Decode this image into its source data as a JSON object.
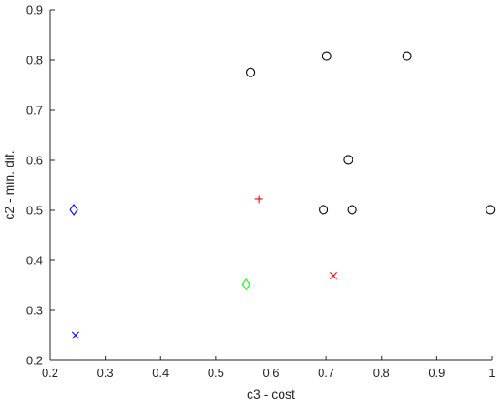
{
  "chart_data": {
    "type": "scatter",
    "title": "",
    "xlabel": "c3 - cost",
    "ylabel": "c2 - min. dif.",
    "xlim": [
      0.2,
      1.0
    ],
    "ylim": [
      0.2,
      0.9
    ],
    "x_ticks": [
      "0.2",
      "0.3",
      "0.4",
      "0.5",
      "0.6",
      "0.7",
      "0.8",
      "0.9",
      "1"
    ],
    "y_ticks": [
      "0.2",
      "0.3",
      "0.4",
      "0.5",
      "0.6",
      "0.7",
      "0.8",
      "0.9"
    ],
    "grid": false,
    "legend": "none",
    "series": [
      {
        "marker": "circle",
        "color": "#000000",
        "points": [
          {
            "x": 0.563,
            "y": 0.775
          },
          {
            "x": 0.701,
            "y": 0.808
          },
          {
            "x": 0.846,
            "y": 0.808
          },
          {
            "x": 0.74,
            "y": 0.601
          },
          {
            "x": 0.695,
            "y": 0.501
          },
          {
            "x": 0.747,
            "y": 0.501
          },
          {
            "x": 0.997,
            "y": 0.501
          }
        ]
      },
      {
        "marker": "plus",
        "color": "#ff0000",
        "points": [
          {
            "x": 0.578,
            "y": 0.522
          }
        ]
      },
      {
        "marker": "x",
        "color": "#ff0000",
        "points": [
          {
            "x": 0.713,
            "y": 0.369
          }
        ]
      },
      {
        "marker": "diamond",
        "color": "#0000ff",
        "points": [
          {
            "x": 0.243,
            "y": 0.501
          }
        ]
      },
      {
        "marker": "diamond",
        "color": "#00ff00",
        "points": [
          {
            "x": 0.555,
            "y": 0.352
          }
        ]
      },
      {
        "marker": "x",
        "color": "#0000ff",
        "points": [
          {
            "x": 0.246,
            "y": 0.25
          }
        ]
      }
    ]
  }
}
